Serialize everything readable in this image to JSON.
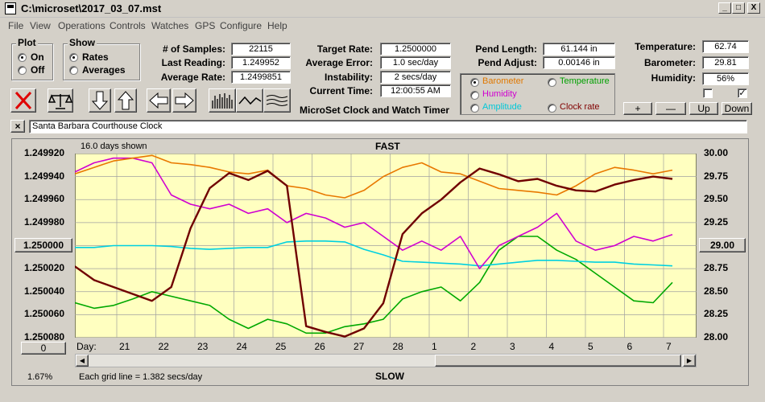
{
  "window": {
    "title": "C:\\microset\\2017_03_07.mst",
    "min": "_",
    "max": "□",
    "close": "X"
  },
  "menu": [
    "File",
    "View",
    "Operations",
    "Controls",
    "Watches",
    "GPS",
    "Configure",
    "Help"
  ],
  "plot_group": {
    "title": "Plot",
    "options": [
      "On",
      "Off"
    ],
    "selected": "On"
  },
  "show_group": {
    "title": "Show",
    "options": [
      "Rates",
      "Averages"
    ],
    "selected": "Rates"
  },
  "stats": {
    "samples_label": "# of Samples:",
    "samples": "22115",
    "last_label": "Last Reading:",
    "last": "1.249952",
    "avg_label": "Average Rate:",
    "avg": "1.2499851",
    "target_label": "Target Rate:",
    "target": "1.2500000",
    "avgerr_label": "Average Error:",
    "avgerr": "1.0 sec/day",
    "instab_label": "Instability:",
    "instab": "2 secs/day",
    "time_label": "Current Time:",
    "time": "12:00:55 AM",
    "pend_len_label": "Pend Length:",
    "pend_len": "61.144 in",
    "pend_adj_label": "Pend Adjust:",
    "pend_adj": "0.00146 in",
    "temp_label": "Temperature:",
    "temp": "62.74",
    "baro_label": "Barometer:",
    "baro": "29.81",
    "hum_label": "Humidity:",
    "hum": "56%"
  },
  "app_title": "MicroSet Clock and Watch Timer",
  "aux_options": [
    {
      "label": "Barometer",
      "color": "#e07800",
      "selected": true
    },
    {
      "label": "Temperature",
      "color": "#00a000",
      "selected": false
    },
    {
      "label": "Humidity",
      "color": "#d000d0",
      "selected": false
    },
    {
      "label": "Clock rate",
      "color": "#800000",
      "selected": false
    },
    {
      "label": "Amplitude",
      "color": "#00c8d8",
      "selected": false
    }
  ],
  "aux_buttons": [
    "+",
    "—",
    "Up",
    "Down"
  ],
  "checkbox_right_mark": "✓",
  "watch_name": "Santa Barbara Courthouse Clock",
  "clear_btn": "×",
  "plot": {
    "days_shown": "16.0 days shown",
    "top_label": "FAST",
    "bottom_label": "SLOW",
    "left_ticks": [
      "1.249920",
      "1.249940",
      "1.249960",
      "1.249980",
      "1.250000",
      "1.250020",
      "1.250040",
      "1.250060",
      "1.250080"
    ],
    "right_ticks": [
      "30.00",
      "29.75",
      "29.50",
      "29.25",
      "29.00",
      "28.75",
      "28.50",
      "28.25",
      "28.00"
    ],
    "left_center_btn": "1.250000",
    "right_center_btn": "29.00",
    "day_label": "Day:",
    "days": [
      "21",
      "22",
      "23",
      "24",
      "25",
      "26",
      "27",
      "28",
      "1",
      "2",
      "3",
      "4",
      "5",
      "6",
      "7"
    ],
    "zero_btn": "0",
    "percent": "1.67%",
    "grid_note": "Each grid line = 1.382 secs/day"
  },
  "chart_data": {
    "type": "line",
    "x_unit": "day",
    "x": [
      0,
      0.5,
      1,
      1.5,
      2,
      2.5,
      3,
      3.5,
      4,
      4.5,
      5,
      5.5,
      6,
      6.5,
      7,
      7.5,
      8,
      8.5,
      9,
      9.5,
      10,
      10.5,
      11,
      11.5,
      12,
      12.5,
      13,
      13.5,
      14,
      14.5,
      15,
      15.5
    ],
    "ylim_left": [
      1.24992,
      1.25008
    ],
    "ylim_right": [
      28.0,
      30.0
    ],
    "series": [
      {
        "name": "Clock rate",
        "axis": "left",
        "color": "#700000",
        "values": [
          1.250018,
          1.25003,
          1.250036,
          1.250042,
          1.250048,
          1.250036,
          1.249985,
          1.24995,
          1.249937,
          1.249943,
          1.249935,
          1.249948,
          1.25007,
          1.250075,
          1.250079,
          1.250072,
          1.25005,
          1.24999,
          1.249972,
          1.24996,
          1.249945,
          1.249933,
          1.249938,
          1.249944,
          1.249942,
          1.249948,
          1.249952,
          1.249953,
          1.249947,
          1.249943,
          1.24994,
          1.249942
        ]
      },
      {
        "name": "Barometer",
        "axis": "right",
        "color": "#e87800",
        "values": [
          29.78,
          29.85,
          29.92,
          29.95,
          29.98,
          29.9,
          29.88,
          29.85,
          29.8,
          29.78,
          29.82,
          29.65,
          29.62,
          29.55,
          29.52,
          29.6,
          29.75,
          29.85,
          29.9,
          29.8,
          29.78,
          29.7,
          29.62,
          29.6,
          29.58,
          29.55,
          29.65,
          29.78,
          29.85,
          29.82,
          29.78,
          29.82
        ]
      },
      {
        "name": "Humidity",
        "axis": "right",
        "color": "#d000d0",
        "values": [
          29.8,
          29.9,
          29.95,
          29.95,
          29.9,
          29.55,
          29.45,
          29.4,
          29.45,
          29.35,
          29.4,
          29.25,
          29.35,
          29.3,
          29.2,
          29.25,
          29.1,
          28.95,
          29.05,
          28.95,
          29.1,
          28.75,
          29.0,
          29.1,
          29.2,
          29.35,
          29.05,
          28.95,
          29.0,
          29.1,
          29.05,
          29.12
        ]
      },
      {
        "name": "Amplitude",
        "axis": "right",
        "color": "#00d0e0",
        "values": [
          28.98,
          28.98,
          29.0,
          29.0,
          29.0,
          28.99,
          28.97,
          28.96,
          28.97,
          28.98,
          28.98,
          29.04,
          29.05,
          29.05,
          29.04,
          28.96,
          28.9,
          28.83,
          28.82,
          28.81,
          28.8,
          28.78,
          28.8,
          28.82,
          28.84,
          28.84,
          28.83,
          28.82,
          28.82,
          28.8,
          28.79,
          28.78
        ]
      },
      {
        "name": "Temperature",
        "axis": "right",
        "color": "#00a800",
        "values": [
          28.38,
          28.32,
          28.35,
          28.42,
          28.5,
          28.45,
          28.4,
          28.35,
          28.2,
          28.1,
          28.2,
          28.15,
          28.05,
          28.05,
          28.12,
          28.15,
          28.2,
          28.42,
          28.5,
          28.55,
          28.4,
          28.6,
          28.95,
          29.1,
          29.1,
          28.95,
          28.85,
          28.7,
          28.55,
          28.4,
          28.38,
          28.6
        ]
      }
    ]
  }
}
